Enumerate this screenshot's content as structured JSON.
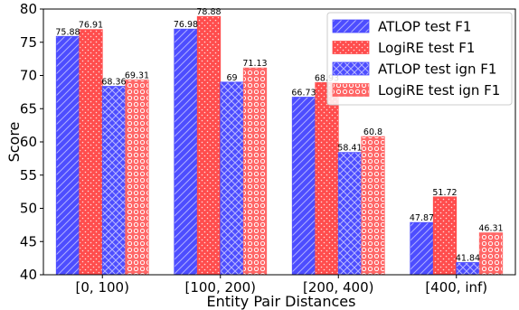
{
  "chart_data": {
    "type": "bar",
    "xlabel": "Entity Pair Distances",
    "ylabel": "Score",
    "ylim": [
      40,
      80
    ],
    "yticks": [
      40,
      45,
      50,
      55,
      60,
      65,
      70,
      75,
      80
    ],
    "categories": [
      "[0, 100)",
      "[100, 200)",
      "[200, 400)",
      "[400, inf)"
    ],
    "legend_position": "top-right",
    "grid": false,
    "series": [
      {
        "name": "ATLOP test F1",
        "values": [
          75.88,
          76.98,
          66.73,
          47.87
        ],
        "labels": [
          "75.88",
          "76.98",
          "66.73",
          "47.87"
        ],
        "color": "#4d4dff",
        "pattern": "diagonal-hatch"
      },
      {
        "name": "LogiRE test F1",
        "values": [
          76.91,
          78.88,
          68.93,
          51.72
        ],
        "labels": [
          "76.91",
          "78.88",
          "68.93",
          "51.72"
        ],
        "color": "#ff4d4d",
        "pattern": "dots"
      },
      {
        "name": "ATLOP test ign F1",
        "values": [
          68.36,
          69,
          58.41,
          41.84
        ],
        "labels": [
          "68.36",
          "69",
          "58.41",
          "41.84"
        ],
        "color": "#4d4dff",
        "pattern": "cross-hatch"
      },
      {
        "name": "LogiRE test ign F1",
        "values": [
          69.31,
          71.13,
          60.8,
          46.31
        ],
        "labels": [
          "69.31",
          "71.13",
          "60.8",
          "46.31"
        ],
        "color": "#ff6666",
        "pattern": "circles"
      }
    ]
  }
}
